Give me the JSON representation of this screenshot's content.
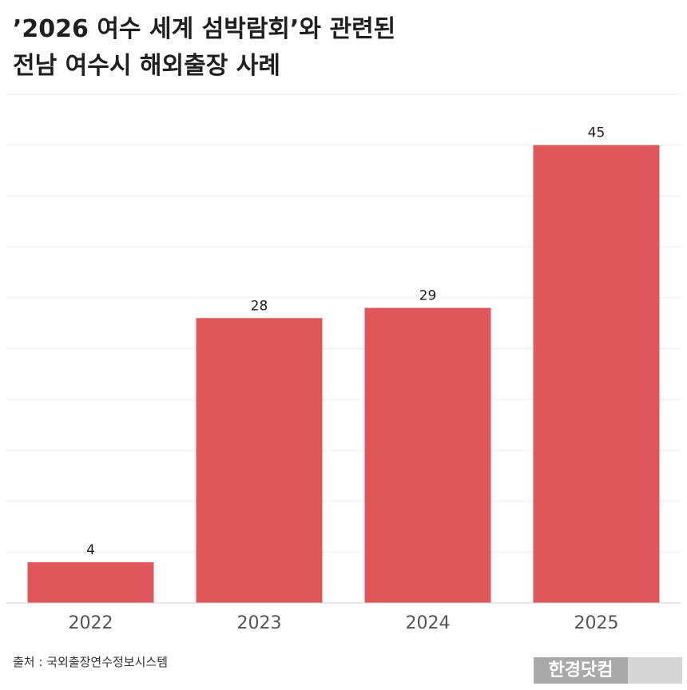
{
  "title": {
    "line1": "’2026 여수 세계 섬박람회’와 관련된",
    "line2": "전남 여수시 해외출장 사례"
  },
  "source": "출처 : 국외출장연수정보시스템",
  "logo": "한경닷컴",
  "colors": {
    "bar": "#e0575b",
    "grid": "#ececec",
    "axis": "#cfcfcf",
    "label": "#1f1f1f",
    "tick": "#555555"
  },
  "chart_data": {
    "type": "bar",
    "categories": [
      "2022",
      "2023",
      "2024",
      "2025"
    ],
    "values": [
      4,
      28,
      29,
      45
    ],
    "data_labels": [
      "4",
      "28",
      "29",
      "45"
    ],
    "ylim": [
      0,
      50
    ],
    "grid": true,
    "legend": "none"
  }
}
